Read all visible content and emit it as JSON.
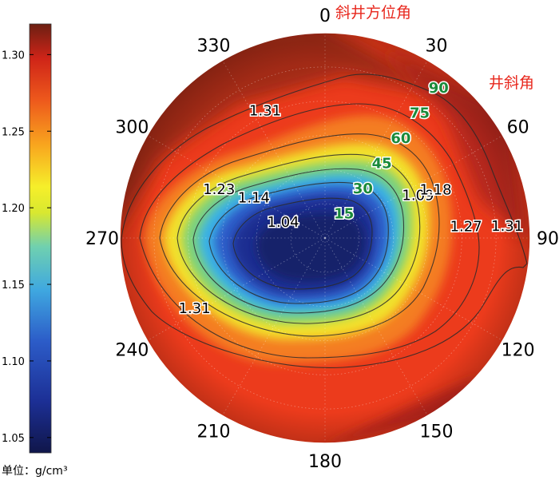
{
  "chart_data": {
    "type": "heatmap",
    "subtype": "polar",
    "azimuth_title": "斜井方位角",
    "inclination_title": "井斜角",
    "azimuth_ticks": [
      "0",
      "30",
      "60",
      "90",
      "120",
      "150",
      "180",
      "210",
      "240",
      "270",
      "300",
      "330"
    ],
    "inclination_ticks": [
      "15",
      "30",
      "45",
      "60",
      "75",
      "90"
    ],
    "colorbar": {
      "min": 1.04,
      "max": 1.32,
      "ticks": [
        "1.05",
        "1.10",
        "1.15",
        "1.20",
        "1.25",
        "1.30"
      ],
      "unit_label": "单位：g/cm³",
      "colormap": "jet"
    },
    "contour_labels": [
      "1.04",
      "1.09",
      "1.14",
      "1.18",
      "1.23",
      "1.27",
      "1.31",
      "1.31",
      "1.31"
    ],
    "colors": {
      "azimuth_title": "#e8281e",
      "inclination_title": "#e8281e",
      "inclination_ticks": "#1a8a3a",
      "tick_text": "#000000"
    }
  }
}
